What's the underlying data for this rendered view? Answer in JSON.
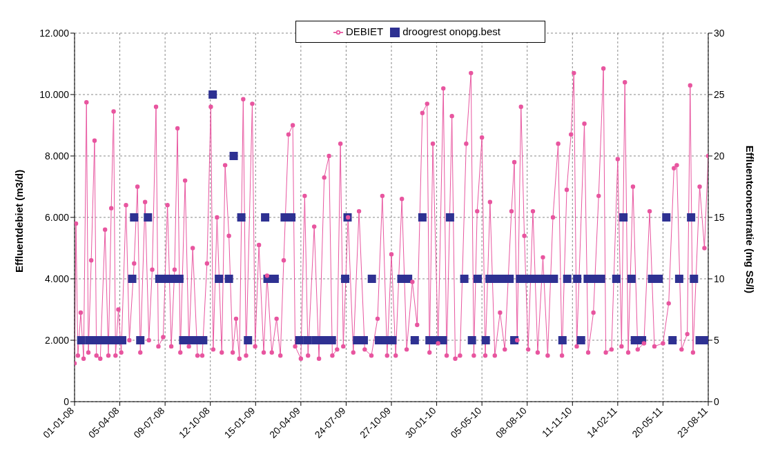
{
  "chart_data": {
    "type": "line",
    "ylabel": "Effluentdebiet (m3/d)",
    "y2label": "Effluentconcentratie (mg SS/l)",
    "xlim": [
      "2008-01-01",
      "2011-08-23"
    ],
    "xticks": [
      {
        "value": "2008-01-01",
        "label": "01-01-08"
      },
      {
        "value": "2008-04-05",
        "label": "05-04-08"
      },
      {
        "value": "2008-07-09",
        "label": "09-07-08"
      },
      {
        "value": "2008-10-12",
        "label": "12-10-08"
      },
      {
        "value": "2009-01-15",
        "label": "15-01-09"
      },
      {
        "value": "2009-04-20",
        "label": "20-04-09"
      },
      {
        "value": "2009-07-24",
        "label": "24-07-09"
      },
      {
        "value": "2009-10-27",
        "label": "27-10-09"
      },
      {
        "value": "2010-01-30",
        "label": "30-01-10"
      },
      {
        "value": "2010-05-05",
        "label": "05-05-10"
      },
      {
        "value": "2010-08-08",
        "label": "08-08-10"
      },
      {
        "value": "2010-11-11",
        "label": "11-11-10"
      },
      {
        "value": "2011-02-14",
        "label": "14-02-11"
      },
      {
        "value": "2011-05-20",
        "label": "20-05-11"
      },
      {
        "value": "2011-08-23",
        "label": "23-08-11"
      }
    ],
    "ylim": [
      0,
      12000
    ],
    "yticks": [
      0,
      {
        "value": 2000,
        "label": "2.000"
      },
      {
        "value": 4000,
        "label": "4.000"
      },
      {
        "value": 6000,
        "label": "6.000"
      },
      {
        "value": 8000,
        "label": "8.000"
      },
      {
        "value": 10000,
        "label": "10.000"
      },
      {
        "value": 12000,
        "label": "12.000"
      }
    ],
    "y2lim": [
      0,
      30
    ],
    "y2ticks": [
      0,
      5,
      10,
      15,
      20,
      25,
      30
    ],
    "grid": true,
    "legend": "top",
    "series": [
      {
        "name": "DEBIET",
        "color": "#e8559f",
        "marker": "circle",
        "line_style": "solid",
        "x": [
          "2008-01-01",
          "2008-01-04",
          "2008-01-08",
          "2008-01-14",
          "2008-01-20",
          "2008-01-26",
          "2008-01-30",
          "2008-02-05",
          "2008-02-12",
          "2008-02-16",
          "2008-02-24",
          "2008-03-05",
          "2008-03-12",
          "2008-03-18",
          "2008-03-23",
          "2008-03-27",
          "2008-04-02",
          "2008-04-08",
          "2008-04-18",
          "2008-04-25",
          "2008-05-05",
          "2008-05-12",
          "2008-05-18",
          "2008-05-28",
          "2008-06-05",
          "2008-06-12",
          "2008-06-20",
          "2008-06-25",
          "2008-07-05",
          "2008-07-14",
          "2008-07-22",
          "2008-07-29",
          "2008-08-04",
          "2008-08-10",
          "2008-08-20",
          "2008-08-28",
          "2008-09-05",
          "2008-09-15",
          "2008-09-25",
          "2008-10-05",
          "2008-10-13",
          "2008-10-18",
          "2008-10-26",
          "2008-11-05",
          "2008-11-12",
          "2008-11-20",
          "2008-11-28",
          "2008-12-05",
          "2008-12-12",
          "2008-12-20",
          "2008-12-26",
          "2009-01-08",
          "2009-01-14",
          "2009-01-22",
          "2009-02-01",
          "2009-02-08",
          "2009-02-18",
          "2009-02-28",
          "2009-03-08",
          "2009-03-15",
          "2009-03-25",
          "2009-04-03",
          "2009-04-08",
          "2009-04-20",
          "2009-04-28",
          "2009-05-05",
          "2009-05-18",
          "2009-05-28",
          "2009-06-08",
          "2009-06-18",
          "2009-06-25",
          "2009-07-05",
          "2009-07-12",
          "2009-07-18",
          "2009-07-28",
          "2009-08-08",
          "2009-08-20",
          "2009-09-01",
          "2009-09-15",
          "2009-09-28",
          "2009-10-08",
          "2009-10-18",
          "2009-10-27",
          "2009-11-05",
          "2009-11-18",
          "2009-11-28",
          "2009-12-10",
          "2009-12-20",
          "2009-12-31",
          "2010-01-10",
          "2010-01-15",
          "2010-01-22",
          "2010-02-02",
          "2010-02-13",
          "2010-02-20",
          "2010-03-03",
          "2010-03-10",
          "2010-03-20",
          "2010-04-02",
          "2010-04-12",
          "2010-04-18",
          "2010-04-25",
          "2010-05-05",
          "2010-05-12",
          "2010-05-22",
          "2010-06-01",
          "2010-06-12",
          "2010-06-22",
          "2010-07-06",
          "2010-07-12",
          "2010-07-18",
          "2010-07-26",
          "2010-08-02",
          "2010-08-10",
          "2010-08-20",
          "2010-08-30",
          "2010-09-10",
          "2010-09-20",
          "2010-10-01",
          "2010-10-12",
          "2010-10-20",
          "2010-10-30",
          "2010-11-08",
          "2010-11-14",
          "2010-11-20",
          "2010-12-06",
          "2010-12-14",
          "2010-12-25",
          "2011-01-05",
          "2011-01-15",
          "2011-01-20",
          "2011-02-01",
          "2011-02-14",
          "2011-02-22",
          "2011-03-01",
          "2011-03-08",
          "2011-03-18",
          "2011-03-28",
          "2011-04-10",
          "2011-04-22",
          "2011-05-02",
          "2011-05-20",
          "2011-06-01",
          "2011-06-12",
          "2011-06-18",
          "2011-06-28",
          "2011-07-10",
          "2011-07-16",
          "2011-07-22",
          "2011-08-05",
          "2011-08-15",
          "2011-08-23"
        ],
        "values": [
          1250,
          5800,
          1500,
          2900,
          1400,
          9750,
          1600,
          4600,
          8500,
          1500,
          1400,
          5600,
          1500,
          6300,
          9450,
          1500,
          3000,
          1600,
          6400,
          2000,
          4500,
          7000,
          1600,
          6500,
          2000,
          4300,
          9600,
          1800,
          2100,
          6400,
          1800,
          4300,
          8900,
          1600,
          7200,
          1800,
          5000,
          1500,
          1500,
          4500,
          9600,
          1700,
          6000,
          1600,
          7700,
          5400,
          1600,
          2700,
          1400,
          9850,
          1500,
          9700,
          1800,
          5100,
          1600,
          4100,
          1600,
          2700,
          1500,
          4600,
          8700,
          9000,
          1800,
          1400,
          6700,
          1500,
          5700,
          1400,
          7300,
          8000,
          1500,
          1700,
          8400,
          1800,
          6000,
          1600,
          6200,
          1700,
          1500,
          2700,
          6700,
          1500,
          4800,
          1500,
          6600,
          1700,
          3900,
          2500,
          9400,
          9700,
          1600,
          8400,
          1900,
          10200,
          1500,
          9300,
          1400,
          1500,
          8400,
          10700,
          1500,
          6200,
          8600,
          1500,
          6500,
          1500,
          2900,
          1700,
          6200,
          7800,
          2000,
          9600,
          5400,
          1700,
          6200,
          1600,
          4700,
          1500,
          6000,
          8400,
          1500,
          6900,
          8700,
          10700,
          1800,
          9050,
          1600,
          2900,
          6700,
          10850,
          1600,
          1700,
          7900,
          1800,
          10400,
          1600,
          7000,
          1700,
          1900,
          6200,
          1800,
          1900,
          3200,
          7600,
          7700,
          1700,
          2200,
          10300,
          1600,
          7000,
          5000,
          8000
        ]
      },
      {
        "name": "droogrest onopg.best",
        "type": "scatter",
        "axis": "y2",
        "color": "#2e3192",
        "marker": "square",
        "x": [
          "2008-01-15",
          "2008-02-01",
          "2008-02-16",
          "2008-03-01",
          "2008-03-15",
          "2008-03-29",
          "2008-04-10",
          "2008-05-18",
          "2008-08-16",
          "2008-08-30",
          "2008-09-13",
          "2008-09-27",
          "2008-12-30",
          "2009-04-17",
          "2009-05-04",
          "2009-05-21",
          "2009-06-07",
          "2009-06-24",
          "2009-08-16",
          "2009-08-30",
          "2009-10-01",
          "2009-10-15",
          "2009-10-29",
          "2009-12-15",
          "2010-01-15",
          "2010-01-29",
          "2010-02-12",
          "2010-04-14",
          "2010-05-13",
          "2010-07-12",
          "2010-10-21",
          "2010-11-29",
          "2011-03-22",
          "2011-04-06",
          "2011-06-09",
          "2011-08-05",
          "2011-08-19",
          "2008-05-01",
          "2008-06-27",
          "2008-07-11",
          "2008-07-25",
          "2008-08-08",
          "2008-10-30",
          "2008-11-20",
          "2009-02-09",
          "2009-02-24",
          "2009-07-22",
          "2009-09-16",
          "2009-11-17",
          "2009-12-01",
          "2010-03-29",
          "2010-04-26",
          "2010-05-21",
          "2010-06-04",
          "2010-06-18",
          "2010-07-02",
          "2010-07-24",
          "2010-08-07",
          "2010-08-21",
          "2010-09-04",
          "2010-09-18",
          "2010-10-03",
          "2010-10-31",
          "2010-11-21",
          "2010-12-13",
          "2010-12-27",
          "2011-01-10",
          "2011-02-11",
          "2011-03-15",
          "2011-04-27",
          "2011-05-11",
          "2011-06-23",
          "2011-07-24",
          "2008-05-05",
          "2008-06-03",
          "2008-12-16",
          "2009-02-04",
          "2009-03-17",
          "2009-03-31",
          "2009-07-27",
          "2009-12-31",
          "2010-02-27",
          "2011-02-26",
          "2011-05-27",
          "2011-07-18",
          "2008-11-30",
          "2008-10-17"
        ],
        "values": [
          5,
          5,
          5,
          5,
          5,
          5,
          5,
          5,
          5,
          5,
          5,
          5,
          5,
          5,
          5,
          5,
          5,
          5,
          5,
          5,
          5,
          5,
          5,
          5,
          5,
          5,
          5,
          5,
          5,
          5,
          5,
          5,
          5,
          5,
          5,
          5,
          5,
          10,
          10,
          10,
          10,
          10,
          10,
          10,
          10,
          10,
          10,
          10,
          10,
          10,
          10,
          10,
          10,
          10,
          10,
          10,
          10,
          10,
          10,
          10,
          10,
          10,
          10,
          10,
          10,
          10,
          10,
          10,
          10,
          10,
          10,
          10,
          10,
          15,
          15,
          15,
          15,
          15,
          15,
          15,
          15,
          15,
          15,
          15,
          15,
          20,
          25
        ]
      }
    ]
  }
}
